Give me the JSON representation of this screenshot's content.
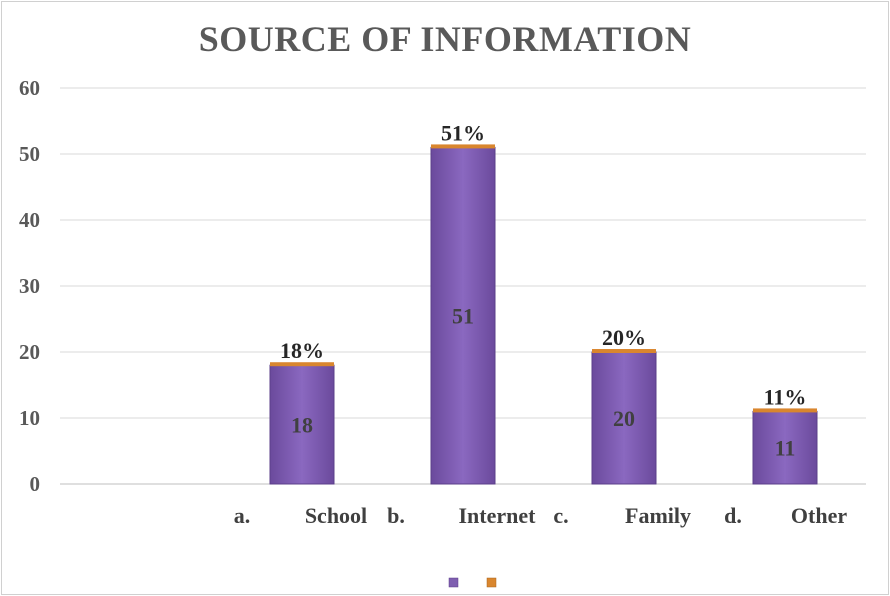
{
  "chart_data": {
    "type": "bar",
    "title": "SOURCE OF INFORMATION",
    "xlabel": "",
    "ylabel": "",
    "ylim": [
      0,
      60
    ],
    "yticks": [
      0,
      10,
      20,
      30,
      40,
      50,
      60
    ],
    "grid": true,
    "legend_position": "bottom",
    "categories": [
      "a.   School",
      "b.   Internet",
      "c.   Family",
      "d.   Other"
    ],
    "category_parts": [
      {
        "letter": "a.",
        "name": "School"
      },
      {
        "letter": "b.",
        "name": "Internet"
      },
      {
        "letter": "c.",
        "name": "Family"
      },
      {
        "letter": "d.",
        "name": "Other"
      }
    ],
    "series": [
      {
        "values": [
          18,
          51,
          20,
          11
        ],
        "color": "#7f5fb0",
        "labels": [
          "18",
          "51",
          "20",
          "11"
        ]
      },
      {
        "values": [
          0.3,
          0.3,
          0.3,
          0.3
        ],
        "color": "#d9862e",
        "labels": [
          "18%",
          "51%",
          "20%",
          "11%"
        ]
      }
    ]
  }
}
